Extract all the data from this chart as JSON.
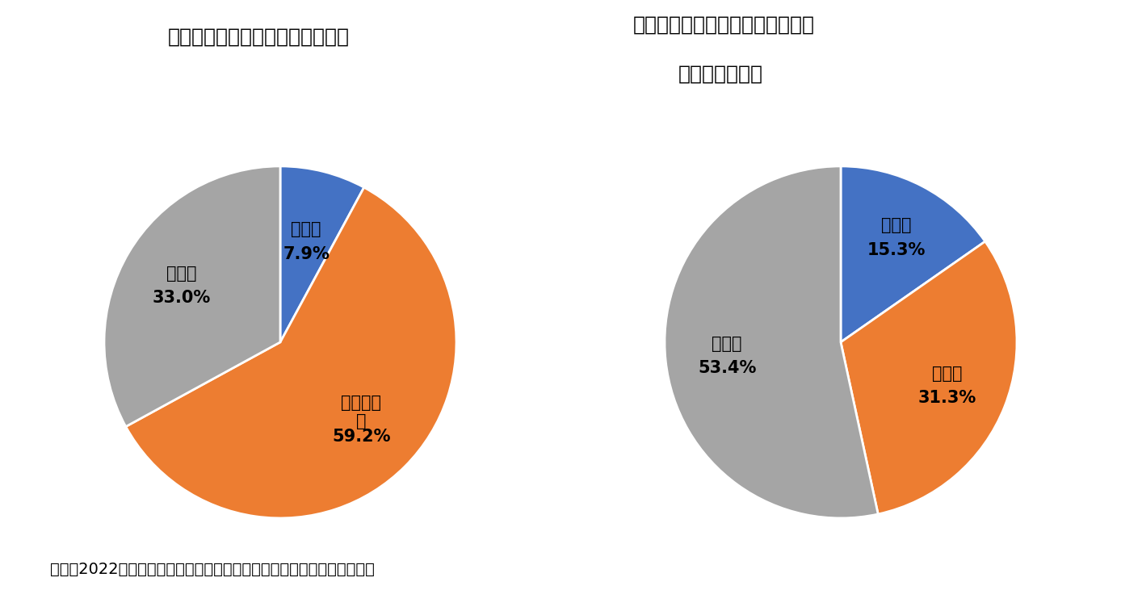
{
  "chart1_title": "図表６　個別避難計画の策定状況",
  "chart1_label_lines": [
    [
      "策定済"
    ],
    [
      "一部策定",
      "済"
    ],
    [
      "未策定"
    ]
  ],
  "chart1_values": [
    7.9,
    59.2,
    33.0
  ],
  "chart1_pct_labels": [
    "7.9%",
    "59.2%",
    "33.0%"
  ],
  "chart1_colors": [
    "#4472C4",
    "#ED7D31",
    "#A5A5A5"
  ],
  "chart1_startangle": 90,
  "chart2_title_line1": "図表７　個別避難計画を活用した",
  "chart2_title_line2": "訓練の実施状況",
  "chart2_label_lines": [
    [
      "実施中"
    ],
    [
      "検討中"
    ],
    [
      "未検討"
    ]
  ],
  "chart2_values": [
    15.3,
    31.3,
    53.4
  ],
  "chart2_pct_labels": [
    "15.3%",
    "31.3%",
    "53.4%"
  ],
  "chart2_colors": [
    "#4472C4",
    "#ED7D31",
    "#A5A5A5"
  ],
  "chart2_startangle": 90,
  "footnote": "（注）2022年１月１日時点　（出所）消防庁のデータをもとに筆者作成",
  "bg_color": "#FFFFFF",
  "title_fontsize": 18,
  "label_fontsize": 15,
  "pct_fontsize": 15,
  "footnote_fontsize": 14
}
